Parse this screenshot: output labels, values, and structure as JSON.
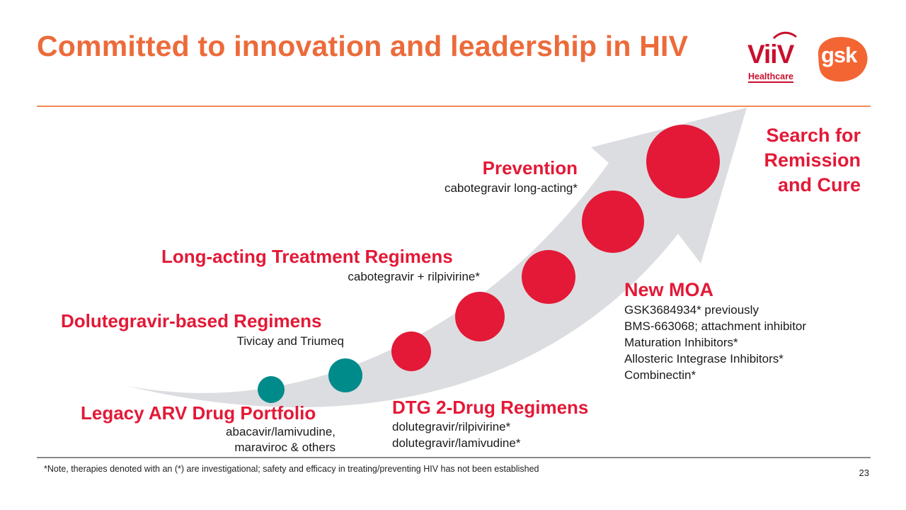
{
  "title": "Committed to innovation and leadership in HIV",
  "logos": {
    "viiv_word": "ViiV",
    "viiv_sub": "Healthcare",
    "gsk_word": "gsk"
  },
  "colors": {
    "title_orange": "#ec6b3a",
    "accent_red": "#e31937",
    "teal": "#008b8b",
    "arrow_gray": "#dcdde0"
  },
  "milestones": {
    "legacy": {
      "heading": "Legacy ARV Drug Portfolio",
      "line1": "abacavir/lamivudine,",
      "line2": "maraviroc & others"
    },
    "dolutegravir": {
      "heading": "Dolutegravir-based Regimens",
      "sub": "Tivicay  and Triumeq"
    },
    "long_acting": {
      "heading": "Long-acting Treatment Regimens",
      "sub": "cabotegravir + rilpivirine*"
    },
    "prevention": {
      "heading": "Prevention",
      "sub": "cabotegravir long-acting*"
    },
    "cure": {
      "line1": "Search for",
      "line2": "Remission",
      "line3": "and Cure"
    },
    "dtg2": {
      "heading": "DTG 2-Drug Regimens",
      "line1": "dolutegravir/rilpivirine*",
      "line2": "dolutegravir/lamivudine*"
    },
    "new_moa": {
      "heading": "New MOA",
      "items": [
        "GSK3684934* previously",
        "BMS-663068; attachment inhibitor",
        "Maturation Inhibitors*",
        "Allosteric Integrase Inhibitors*",
        "Combinectin*"
      ]
    }
  },
  "footnote": "*Note, therapies denoted with an (*) are investigational; safety and efficacy in treating/preventing HIV has not been established",
  "page_number": "23"
}
